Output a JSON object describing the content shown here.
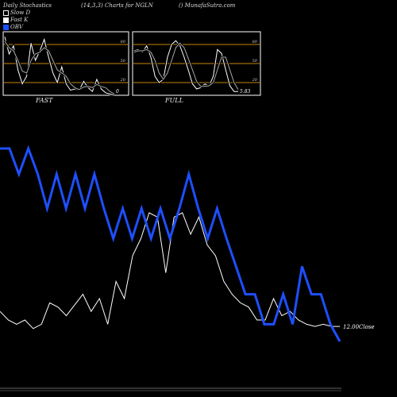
{
  "header": {
    "title": "Daily Stochastics",
    "params": "(14,3,3) Charts for NGLN",
    "site": "() MunafaSutra.com"
  },
  "legend": {
    "items": [
      {
        "label": "Slow  D",
        "color": "#000000"
      },
      {
        "label": "Fast K",
        "color": "#ffffff"
      },
      {
        "label": "OBV",
        "color": "#1e4fff"
      }
    ]
  },
  "panels": [
    {
      "label": "FAST",
      "last_value": "0",
      "levels": [
        "80",
        "50",
        "20"
      ]
    },
    {
      "label": "FULL",
      "last_value": "5.83",
      "levels": [
        "80",
        "50",
        "20"
      ]
    }
  ],
  "main": {
    "close_label": "12.00Close"
  },
  "chart_data": [
    {
      "type": "line",
      "title": "FAST",
      "ylim": [
        0,
        100
      ],
      "levels": [
        20,
        50,
        80
      ],
      "series": [
        {
          "name": "Fast K",
          "color": "#ffffff",
          "values": [
            92,
            65,
            78,
            40,
            18,
            30,
            82,
            55,
            70,
            88,
            60,
            35,
            20,
            45,
            18,
            8,
            10,
            8,
            22,
            12,
            6,
            25,
            10,
            4,
            2,
            0
          ]
        },
        {
          "name": "Slow  D",
          "color": "#aaaaaa",
          "values": [
            85,
            75,
            70,
            55,
            38,
            35,
            55,
            65,
            68,
            75,
            70,
            55,
            40,
            35,
            30,
            18,
            12,
            9,
            13,
            14,
            12,
            17,
            14,
            12,
            6,
            2
          ]
        }
      ]
    },
    {
      "type": "line",
      "title": "FULL",
      "ylim": [
        0,
        100
      ],
      "levels": [
        20,
        50,
        80
      ],
      "series": [
        {
          "name": "Fast K",
          "color": "#ffffff",
          "values": [
            70,
            72,
            68,
            78,
            60,
            30,
            20,
            25,
            60,
            80,
            86,
            78,
            60,
            40,
            18,
            10,
            12,
            18,
            14,
            30,
            72,
            66,
            40,
            15,
            6,
            5.83
          ]
        },
        {
          "name": "Slow  D",
          "color": "#aaaaaa",
          "values": [
            68,
            70,
            70,
            72,
            68,
            55,
            35,
            25,
            35,
            55,
            75,
            82,
            75,
            58,
            40,
            22,
            14,
            14,
            15,
            20,
            40,
            60,
            60,
            40,
            20,
            9
          ]
        }
      ]
    },
    {
      "type": "line",
      "title": "",
      "ylim": [
        0,
        100
      ],
      "series": [
        {
          "name": "OBV",
          "color": "#1e4fff",
          "values": [
            90,
            90,
            78,
            90,
            78,
            62,
            78,
            62,
            78,
            62,
            78,
            62,
            48,
            62,
            48,
            62,
            48,
            62,
            48,
            62,
            78,
            62,
            48,
            62,
            48,
            35,
            22,
            22,
            8,
            8,
            22,
            8,
            35,
            22,
            22,
            8,
            0
          ]
        },
        {
          "name": "Close",
          "color": "#ffffff",
          "values": [
            14,
            10,
            8,
            10,
            6,
            8,
            18,
            16,
            12,
            17,
            22,
            14,
            20,
            8,
            28,
            20,
            40,
            48,
            60,
            58,
            32,
            58,
            60,
            50,
            58,
            45,
            40,
            28,
            22,
            18,
            16,
            10,
            10,
            20,
            12,
            14,
            10,
            8,
            7,
            8,
            7,
            7
          ]
        }
      ]
    }
  ]
}
